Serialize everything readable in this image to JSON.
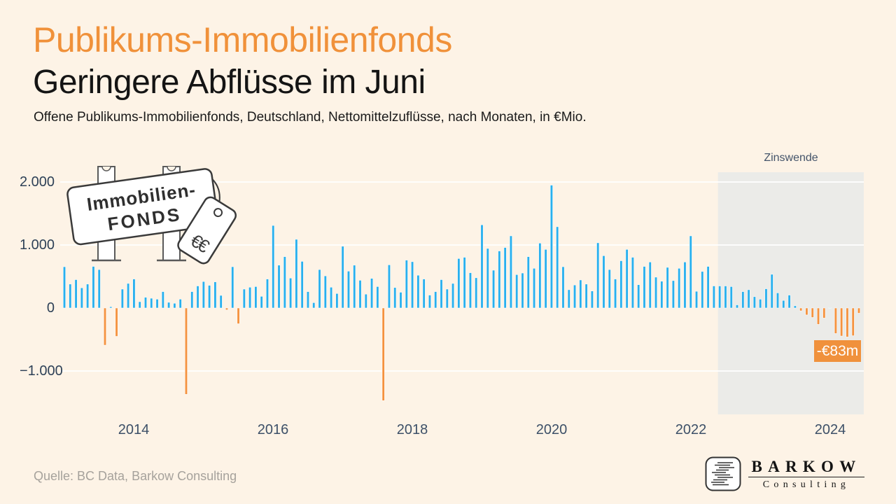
{
  "header": {
    "title": "Publikums-Immobilienfonds",
    "subtitle": "Geringere Abflüsse im Juni",
    "description": "Offene Publikums-Immobilienfonds, Deutschland, Nettomittelzuflüsse, nach Monaten, in €Mio."
  },
  "chart": {
    "y_ticks": [
      "2.000",
      "1.000",
      "0",
      "−1.000"
    ],
    "x_ticks": [
      "2014",
      "2016",
      "2018",
      "2020",
      "2022",
      "2024"
    ],
    "region_label": "Zinswende",
    "callout_label": "-€83m",
    "sign": {
      "line1": "Immobilien-",
      "line2": "FONDS",
      "tag_label": "€€"
    },
    "colors": {
      "positive_bar": "#28b0ee",
      "negative_bar": "#f5923e",
      "background": "#fdf3e6",
      "region": "#ebebe8",
      "gridline": "#ffffff",
      "axis_text": "#2e4157",
      "callout_bg": "#f0913c",
      "title_orange": "#f0913a"
    }
  },
  "chart_data": {
    "type": "bar",
    "title": "Offene Publikums-Immobilienfonds, Deutschland, Nettomittelzuflüsse, nach Monaten, in €Mio.",
    "unit": "EUR million (€Mio.)",
    "start_month": "2013-01",
    "end_month": "2024-06",
    "ylim": [
      -1500,
      2100
    ],
    "y_gridlines": [
      2000,
      1000,
      -1000
    ],
    "x_tick_years": [
      2014,
      2016,
      2018,
      2020,
      2022,
      2024
    ],
    "highlight_region": {
      "label": "Zinswende",
      "from_month": "2022-06",
      "to_month": "2024-06"
    },
    "last_point_label": "-€83m",
    "last_point_value": -83,
    "series": [
      {
        "name": "Nettomittelzuflüsse",
        "values": [
          655,
          380,
          450,
          320,
          380,
          660,
          610,
          -590,
          20,
          -450,
          300,
          390,
          460,
          100,
          170,
          155,
          140,
          260,
          90,
          75,
          140,
          -1370,
          260,
          350,
          420,
          360,
          415,
          200,
          -30,
          655,
          -250,
          300,
          330,
          340,
          185,
          460,
          1310,
          680,
          815,
          475,
          1090,
          740,
          260,
          85,
          610,
          510,
          330,
          230,
          980,
          585,
          680,
          440,
          220,
          470,
          340,
          -1470,
          685,
          325,
          250,
          760,
          735,
          520,
          460,
          205,
          260,
          450,
          300,
          390,
          785,
          805,
          560,
          480,
          1320,
          945,
          600,
          905,
          960,
          1145,
          530,
          555,
          815,
          630,
          1030,
          930,
          1950,
          1290,
          655,
          290,
          365,
          445,
          380,
          270,
          1035,
          830,
          610,
          460,
          750,
          930,
          805,
          370,
          660,
          730,
          490,
          425,
          645,
          435,
          630,
          730,
          1145,
          265,
          580,
          660,
          350,
          350,
          350,
          340,
          50,
          260,
          290,
          180,
          140,
          305,
          535,
          240,
          120,
          205,
          35,
          -45,
          -110,
          -150,
          -260,
          -160,
          5,
          -405,
          -445,
          -460,
          -440,
          -83
        ]
      }
    ]
  },
  "footer": {
    "source": "Quelle: BC Data, Barkow Consulting",
    "logo": {
      "name": "BARKOW",
      "subname": "Consulting"
    }
  }
}
